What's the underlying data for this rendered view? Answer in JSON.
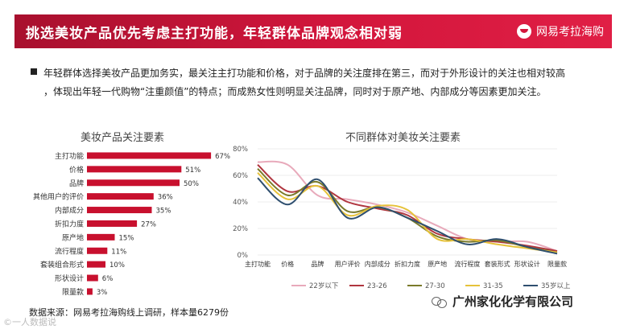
{
  "header": {
    "title": "挑选美妆产品优先考虑主打功能，年轻群体品牌观念相对弱",
    "brand": "网易考拉海购"
  },
  "description": [
    "年轻群体选择美妆产品更加务实，最关注主打功能和价格，对于品牌的关注度排在第三，而对于外形设计的关注也相对较高",
    "，体现出年轻一代购物“注重颜值”的特点；而成熟女性则明显关注品牌，同时对于原产地、内部成分等因素更加关注。"
  ],
  "source": "数据来源：网易考拉海购线上调研，样本量6279份",
  "watermark": {
    "left": "©一人数据说",
    "right": "广州家化化学有限公司"
  },
  "colors": {
    "banner": "#d3163c",
    "bar": "#c8102e"
  },
  "chart_data": [
    {
      "type": "bar",
      "orientation": "horizontal",
      "title": "美妆产品关注要素",
      "categories": [
        "主打功能",
        "价格",
        "品牌",
        "其他用户的评价",
        "内部成分",
        "折扣力度",
        "原产地",
        "流行程度",
        "套装组合形式",
        "形状设计",
        "限量款"
      ],
      "values": [
        67,
        51,
        50,
        36,
        35,
        27,
        15,
        11,
        10,
        6,
        3
      ],
      "value_labels": [
        "67%",
        "51%",
        "50%",
        "36%",
        "35%",
        "27%",
        "15%",
        "11%",
        "10%",
        "6%",
        "3%"
      ],
      "xlim": [
        0,
        100
      ]
    },
    {
      "type": "line",
      "title": "不同群体对美妆关注要素",
      "categories": [
        "主打功能",
        "价格",
        "品牌",
        "用户评价",
        "内部成分",
        "折扣力度",
        "原产地",
        "流行程度",
        "套装形式",
        "形状设计",
        "限量款"
      ],
      "ylim": [
        0,
        80
      ],
      "yticks": [
        "0%",
        "20%",
        "40%",
        "60%",
        "80%"
      ],
      "ytick_values": [
        0,
        20,
        40,
        60,
        80
      ],
      "legend_position": "bottom",
      "series": [
        {
          "name": "22岁以下",
          "color": "#e8aabb",
          "values": [
            70,
            68,
            45,
            42,
            38,
            32,
            22,
            12,
            10,
            10,
            3
          ]
        },
        {
          "name": "23-26",
          "color": "#b0353f",
          "values": [
            68,
            48,
            52,
            40,
            35,
            30,
            16,
            12,
            10,
            7,
            3
          ]
        },
        {
          "name": "27-30",
          "color": "#7a7a2a",
          "values": [
            65,
            45,
            55,
            33,
            36,
            28,
            14,
            10,
            11,
            6,
            2
          ]
        },
        {
          "name": "31-35",
          "color": "#e6c23a",
          "values": [
            62,
            42,
            52,
            30,
            37,
            34,
            12,
            12,
            8,
            5,
            2
          ]
        },
        {
          "name": "35岁以上",
          "color": "#2f4f6f",
          "values": [
            58,
            38,
            57,
            28,
            36,
            28,
            18,
            8,
            12,
            6,
            1
          ]
        }
      ]
    }
  ]
}
